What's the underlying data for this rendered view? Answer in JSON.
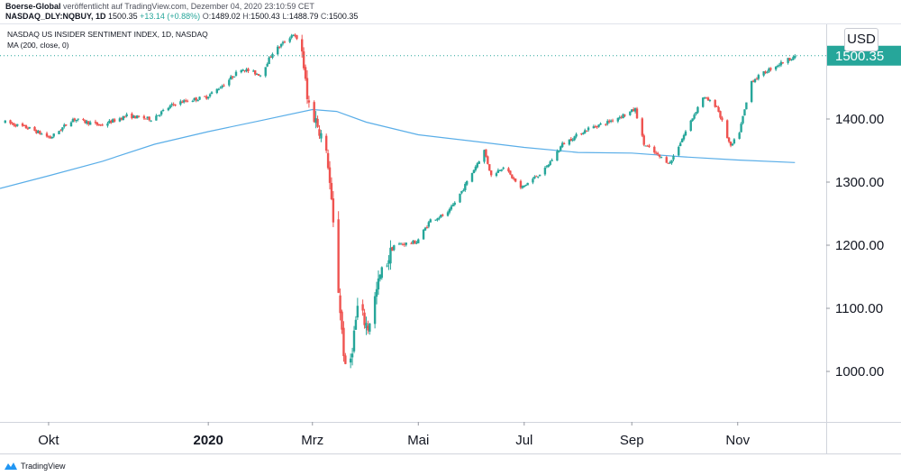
{
  "header": {
    "publisher": "Boerse-Global",
    "published_text": "veröffentlicht auf TradingView.com, Dezember 04, 2020 23:10:59 CET"
  },
  "infobar": {
    "symbol": "NASDAQ_DLY:NQBUY, 1D",
    "last": "1500.35",
    "change": "+13.14 (+0.88%)",
    "open_label": "O:",
    "open": "1489.02",
    "high_label": "H:",
    "high": "1500.43",
    "low_label": "L:",
    "low": "1488.79",
    "close_label": "C:",
    "close": "1500.35"
  },
  "legend": {
    "series_title": "NASDAQ US INSIDER SENTIMENT INDEX, 1D, NASDAQ",
    "indicator": "MA (200, close, 0)"
  },
  "currency": "USD",
  "footer": {
    "brand": "TradingView",
    "icon": "tradingview-logo-icon"
  },
  "colors": {
    "up": "#26a69a",
    "down": "#ef5350",
    "ma": "#5aaee8",
    "price_tag": "#26a69a"
  },
  "chart_data": {
    "type": "candlestick",
    "title": "NASDAQ US INSIDER SENTIMENT INDEX",
    "ylim": [
      920,
      1550
    ],
    "y_ticks": [
      1000,
      1100,
      1200,
      1300,
      1400
    ],
    "y_tick_labels": [
      "1000.00",
      "1100.00",
      "1200.00",
      "1300.00",
      "1400.00"
    ],
    "x_ticks": [
      {
        "label": "Okt",
        "date": "2019-10-01",
        "bold": false
      },
      {
        "label": "2020",
        "date": "2020-01-01",
        "bold": true
      },
      {
        "label": "Mrz",
        "date": "2020-03-01",
        "bold": false
      },
      {
        "label": "Mai",
        "date": "2020-05-01",
        "bold": false
      },
      {
        "label": "Jul",
        "date": "2020-07-01",
        "bold": false
      },
      {
        "label": "Sep",
        "date": "2020-09-01",
        "bold": false
      },
      {
        "label": "Nov",
        "date": "2020-11-01",
        "bold": false
      }
    ],
    "last_price": 1500.35,
    "last_price_label": "1500.35",
    "price_anchors": [
      [
        "2019-09-06",
        1395
      ],
      [
        "2019-09-20",
        1385
      ],
      [
        "2019-10-02",
        1370
      ],
      [
        "2019-10-15",
        1400
      ],
      [
        "2019-10-31",
        1390
      ],
      [
        "2019-11-15",
        1405
      ],
      [
        "2019-11-29",
        1400
      ],
      [
        "2019-12-13",
        1425
      ],
      [
        "2019-12-31",
        1435
      ],
      [
        "2020-01-10",
        1455
      ],
      [
        "2020-01-20",
        1480
      ],
      [
        "2020-01-31",
        1470
      ],
      [
        "2020-02-07",
        1505
      ],
      [
        "2020-02-19",
        1535
      ],
      [
        "2020-02-24",
        1510
      ],
      [
        "2020-02-27",
        1430
      ],
      [
        "2020-03-05",
        1385
      ],
      [
        "2020-03-10",
        1330
      ],
      [
        "2020-03-16",
        1130
      ],
      [
        "2020-03-20",
        1000
      ],
      [
        "2020-03-23",
        1020
      ],
      [
        "2020-03-27",
        1100
      ],
      [
        "2020-04-02",
        1070
      ],
      [
        "2020-04-09",
        1150
      ],
      [
        "2020-04-17",
        1200
      ],
      [
        "2020-04-30",
        1205
      ],
      [
        "2020-05-08",
        1240
      ],
      [
        "2020-05-18",
        1250
      ],
      [
        "2020-05-27",
        1290
      ],
      [
        "2020-06-08",
        1350
      ],
      [
        "2020-06-12",
        1310
      ],
      [
        "2020-06-19",
        1325
      ],
      [
        "2020-06-29",
        1290
      ],
      [
        "2020-07-13",
        1320
      ],
      [
        "2020-07-23",
        1360
      ],
      [
        "2020-08-07",
        1385
      ],
      [
        "2020-08-18",
        1395
      ],
      [
        "2020-08-26",
        1405
      ],
      [
        "2020-09-03",
        1415
      ],
      [
        "2020-09-08",
        1360
      ],
      [
        "2020-09-17",
        1340
      ],
      [
        "2020-09-23",
        1330
      ],
      [
        "2020-10-02",
        1380
      ],
      [
        "2020-10-12",
        1435
      ],
      [
        "2020-10-20",
        1420
      ],
      [
        "2020-10-28",
        1355
      ],
      [
        "2020-11-02",
        1380
      ],
      [
        "2020-11-09",
        1460
      ],
      [
        "2020-11-20",
        1480
      ],
      [
        "2020-12-04",
        1500
      ]
    ],
    "ma_series": {
      "name": "MA (200, close, 0)",
      "points": [
        [
          "2019-09-03",
          1290
        ],
        [
          "2019-10-01",
          1310
        ],
        [
          "2019-11-01",
          1333
        ],
        [
          "2019-12-01",
          1360
        ],
        [
          "2020-01-01",
          1380
        ],
        [
          "2020-02-01",
          1398
        ],
        [
          "2020-03-01",
          1415
        ],
        [
          "2020-03-15",
          1412
        ],
        [
          "2020-04-01",
          1395
        ],
        [
          "2020-05-01",
          1375
        ],
        [
          "2020-06-01",
          1365
        ],
        [
          "2020-07-01",
          1355
        ],
        [
          "2020-08-01",
          1347
        ],
        [
          "2020-09-01",
          1346
        ],
        [
          "2020-10-01",
          1340
        ],
        [
          "2020-11-01",
          1335
        ],
        [
          "2020-12-04",
          1331
        ]
      ]
    }
  }
}
